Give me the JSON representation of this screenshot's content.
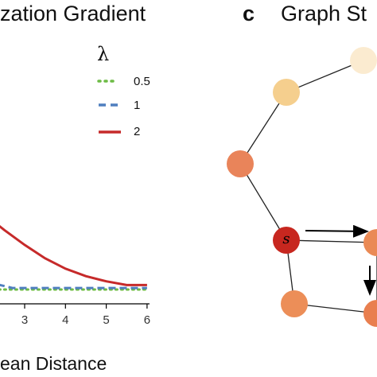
{
  "panel_b": {
    "title_visible": "zation Gradient",
    "legend_title": "λ",
    "chart_data": {
      "type": "line",
      "title": "zation Gradient",
      "xlabel": "ean Distance",
      "ylabel": "",
      "xticks": [
        "3",
        "4",
        "5",
        "6"
      ],
      "xlim": [
        0.8,
        6.2
      ],
      "ylim": [
        0,
        1.0
      ],
      "legend_position": "top-right",
      "series": [
        {
          "name": "0.5",
          "style": "dotted",
          "color": "#6dbb45",
          "x": [
            1,
            2,
            3,
            4,
            5,
            6
          ],
          "y": [
            0.0,
            0.0,
            0.0,
            0.0,
            0.0,
            0.0
          ]
        },
        {
          "name": "1",
          "style": "dashed",
          "color": "#4f7fbf",
          "x": [
            1,
            1.5,
            2,
            2.4,
            2.7,
            3,
            4,
            5,
            6
          ],
          "y": [
            0.1,
            0.09,
            0.065,
            0.03,
            0.01,
            0.01,
            0.01,
            0.01,
            0.01
          ]
        },
        {
          "name": "2",
          "style": "solid",
          "color": "#c62a2a",
          "x": [
            1,
            1.5,
            2,
            2.5,
            3,
            3.5,
            4,
            4.5,
            5,
            5.5,
            5.8,
            6
          ],
          "y": [
            0.69,
            0.61,
            0.51,
            0.4,
            0.3,
            0.21,
            0.14,
            0.09,
            0.055,
            0.03,
            0.03,
            0.03
          ]
        }
      ]
    }
  },
  "panel_c": {
    "panel_letter": "c",
    "title_visible": "Graph St",
    "start_node_label": "s",
    "nodes": [
      {
        "id": "n1",
        "color": "#fbebd0"
      },
      {
        "id": "n2",
        "color": "#f5cf8e"
      },
      {
        "id": "n3",
        "color": "#e9845a"
      },
      {
        "id": "s",
        "color": "#c7271f"
      },
      {
        "id": "n5",
        "color": "#ea8a55"
      },
      {
        "id": "n6",
        "color": "#ec8e58"
      },
      {
        "id": "n7",
        "color": "#e97f4f"
      }
    ],
    "edges": [
      [
        "n1",
        "n2"
      ],
      [
        "n2",
        "n3"
      ],
      [
        "n3",
        "s"
      ],
      [
        "s",
        "n6"
      ],
      [
        "s",
        "n5"
      ],
      [
        "n5",
        "n7"
      ],
      [
        "n6",
        "n7"
      ]
    ]
  }
}
